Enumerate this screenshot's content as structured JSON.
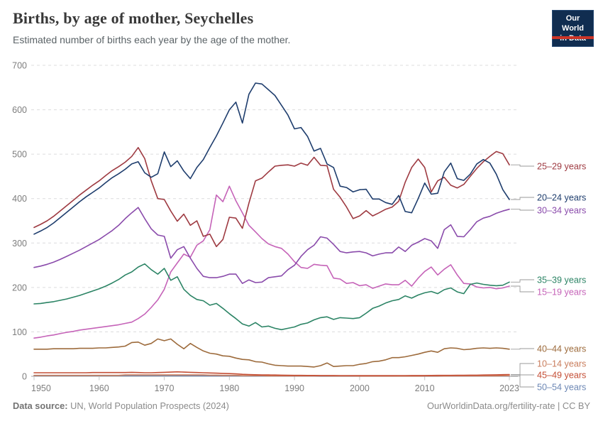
{
  "header": {
    "title": "Births, by age of mother, Seychelles",
    "subtitle": "Estimated number of births each year by the age of the mother.",
    "logo": {
      "line1": "Our World",
      "line2": "in Data",
      "bg_color": "#102d50",
      "stripe_color": "#cb3528"
    }
  },
  "footer": {
    "source_label": "Data source:",
    "source_text": " UN, World Population Prospects (2024)",
    "right_link": "OurWorldinData.org/fertility-rate",
    "right_license": " | CC BY"
  },
  "chart_data": {
    "type": "line",
    "title": "Births, by age of mother, Seychelles",
    "xlabel": "",
    "ylabel": "",
    "x": {
      "start": 1950,
      "end": 2023,
      "step": 1
    },
    "ylim": [
      0,
      700
    ],
    "yticks": [
      0,
      100,
      200,
      300,
      400,
      500,
      600,
      700
    ],
    "xticks": [
      1950,
      1960,
      1970,
      1980,
      1990,
      2000,
      2010,
      2023
    ],
    "grid": "dashed-horizontal",
    "legend_position": "right",
    "series": [
      {
        "id": "50-54",
        "name": "50–54 years",
        "color": "#6c87b4",
        "values": [
          1.5,
          1.5,
          1.5,
          1.5,
          1.5,
          1.5,
          1.5,
          1.5,
          1.5,
          1.5,
          1.5,
          1.5,
          1.5,
          1.5,
          1.5,
          1.5,
          1.5,
          1.4,
          1.4,
          1.4,
          1.4,
          1.4,
          1.3,
          1.3,
          1.2,
          1.2,
          1.1,
          1,
          1,
          0.9,
          0.9,
          0.8,
          0.8,
          0.7,
          0.7,
          0.6,
          0.6,
          0.5,
          0.5,
          0.5,
          0.4,
          0.4,
          0.4,
          0.4,
          0.3,
          0.3,
          0.3,
          0.3,
          0.3,
          0.3,
          0.3,
          0.3,
          0.3,
          0.3,
          0.3,
          0.3,
          0.3,
          0.3,
          0.3,
          0.3,
          0.3,
          0.3,
          0.3,
          0.4,
          0.4,
          0.4,
          0.4,
          0.5,
          0.5,
          0.5,
          0.5,
          0.6,
          0.6,
          0.7
        ]
      },
      {
        "id": "10-14",
        "name": "10–14 years",
        "color": "#c97d5c",
        "values": [
          2,
          2,
          2,
          2,
          2,
          2,
          2,
          2,
          2,
          2,
          2,
          2,
          2,
          2,
          3,
          3,
          3,
          3,
          3,
          3,
          3,
          3,
          3,
          3,
          3,
          3,
          3,
          2.5,
          2.5,
          2,
          2,
          2,
          1.5,
          1.5,
          1.5,
          1.5,
          1,
          1,
          1,
          1,
          1,
          1,
          0.8,
          0.8,
          0.8,
          0.8,
          0.6,
          0.6,
          0.6,
          0.6,
          0.5,
          0.5,
          0.5,
          0.5,
          0.5,
          0.5,
          0.5,
          0.5,
          0.5,
          0.5,
          0.6,
          0.6,
          0.7,
          0.7,
          0.8,
          0.8,
          0.8,
          0.9,
          1,
          1,
          1,
          1,
          1.2,
          1.2
        ]
      },
      {
        "id": "45-49",
        "name": "45–49 years",
        "color": "#c44e35",
        "values": [
          8,
          8,
          8,
          8,
          8,
          8,
          8,
          8,
          8,
          8.5,
          8.5,
          8.5,
          8.5,
          8.5,
          8.5,
          9,
          8.5,
          8,
          8,
          8.5,
          9,
          9.5,
          10,
          9.5,
          9,
          8.5,
          8,
          7.5,
          7,
          6.5,
          6,
          5.5,
          4.5,
          4,
          3.5,
          3,
          3,
          2.8,
          2.5,
          2.2,
          2,
          2,
          1.9,
          1.9,
          1.8,
          1.8,
          1.7,
          1.6,
          1.6,
          1.5,
          1.5,
          1.5,
          1.5,
          1.5,
          1.5,
          1.5,
          1.6,
          1.6,
          1.7,
          1.8,
          1.8,
          1.9,
          2,
          2,
          2.1,
          2.2,
          2.3,
          2.5,
          2.6,
          2.8,
          3,
          3.3,
          3.6,
          4
        ]
      },
      {
        "id": "40-44",
        "name": "40–44 years",
        "color": "#9d6b3c",
        "values": [
          61,
          61,
          61,
          62,
          62,
          62,
          62,
          63,
          63,
          63,
          64,
          64,
          65,
          66,
          68,
          76,
          77,
          70,
          74,
          84,
          80,
          84,
          72,
          62,
          74,
          65,
          57,
          52,
          50,
          46,
          45,
          41,
          38,
          37,
          33,
          32,
          28,
          25,
          24,
          23,
          23,
          23,
          22,
          21,
          24,
          30,
          22,
          23,
          24,
          24,
          27,
          29,
          33,
          34,
          37,
          42,
          42,
          44,
          47,
          50,
          54,
          57,
          54,
          62,
          64,
          63,
          60,
          61,
          63,
          64,
          63,
          64,
          63,
          61
        ]
      },
      {
        "id": "15-19",
        "name": "15–19 years",
        "color": "#c563b8",
        "values": [
          86,
          88,
          91,
          93,
          96,
          99,
          101,
          104,
          106,
          108,
          110,
          112,
          114,
          116,
          119,
          122,
          130,
          140,
          155,
          172,
          196,
          235,
          255,
          275,
          268,
          295,
          305,
          330,
          408,
          393,
          428,
          395,
          368,
          340,
          325,
          310,
          298,
          292,
          288,
          275,
          258,
          245,
          243,
          252,
          250,
          249,
          221,
          219,
          209,
          211,
          204,
          206,
          198,
          203,
          208,
          206,
          206,
          216,
          203,
          221,
          236,
          246,
          228,
          241,
          251,
          228,
          209,
          208,
          201,
          199,
          200,
          197,
          199,
          203
        ]
      },
      {
        "id": "35-39",
        "name": "35–39 years",
        "color": "#2c8465",
        "values": [
          163,
          164,
          166,
          168,
          171,
          174,
          178,
          182,
          187,
          192,
          197,
          203,
          210,
          218,
          228,
          235,
          246,
          253,
          240,
          230,
          243,
          216,
          224,
          196,
          182,
          173,
          170,
          160,
          164,
          153,
          141,
          130,
          118,
          113,
          121,
          111,
          113,
          108,
          105,
          108,
          111,
          117,
          120,
          127,
          132,
          134,
          128,
          132,
          131,
          130,
          132,
          142,
          153,
          158,
          165,
          170,
          173,
          181,
          176,
          183,
          188,
          191,
          186,
          195,
          199,
          190,
          186,
          207,
          210,
          207,
          205,
          204,
          205,
          212
        ]
      },
      {
        "id": "30-34",
        "name": "30–34 years",
        "color": "#8a4bab",
        "values": [
          245,
          248,
          252,
          257,
          263,
          270,
          277,
          284,
          292,
          300,
          308,
          318,
          328,
          340,
          355,
          368,
          380,
          355,
          332,
          318,
          315,
          266,
          285,
          292,
          266,
          243,
          225,
          222,
          222,
          225,
          230,
          230,
          209,
          217,
          211,
          212,
          222,
          224,
          226,
          240,
          250,
          270,
          285,
          295,
          314,
          311,
          297,
          281,
          278,
          280,
          281,
          278,
          271,
          275,
          278,
          278,
          291,
          281,
          295,
          302,
          310,
          305,
          288,
          330,
          341,
          315,
          314,
          330,
          348,
          356,
          360,
          367,
          372,
          376
        ]
      },
      {
        "id": "25-29",
        "name": "25–29 years",
        "color": "#9e3a41",
        "values": [
          335,
          342,
          350,
          360,
          372,
          384,
          396,
          408,
          419,
          430,
          440,
          452,
          463,
          472,
          482,
          495,
          515,
          490,
          440,
          400,
          398,
          372,
          349,
          365,
          340,
          350,
          315,
          320,
          292,
          308,
          358,
          356,
          333,
          390,
          440,
          446,
          460,
          473,
          475,
          476,
          473,
          480,
          475,
          493,
          475,
          474,
          421,
          403,
          381,
          355,
          361,
          373,
          361,
          368,
          376,
          381,
          394,
          437,
          470,
          489,
          470,
          415,
          440,
          448,
          430,
          424,
          432,
          450,
          468,
          483,
          495,
          506,
          501,
          476
        ]
      },
      {
        "id": "20-24",
        "name": "20–24 years",
        "color": "#1e3d6d",
        "values": [
          320,
          327,
          335,
          345,
          357,
          369,
          381,
          393,
          404,
          414,
          424,
          436,
          447,
          456,
          466,
          478,
          483,
          458,
          448,
          456,
          505,
          472,
          485,
          462,
          445,
          470,
          488,
          515,
          541,
          570,
          600,
          617,
          570,
          635,
          660,
          658,
          645,
          632,
          610,
          588,
          557,
          560,
          540,
          507,
          513,
          478,
          470,
          428,
          425,
          415,
          420,
          421,
          399,
          399,
          391,
          387,
          407,
          371,
          368,
          400,
          435,
          410,
          412,
          460,
          480,
          445,
          441,
          455,
          478,
          488,
          480,
          455,
          420,
          398
        ]
      }
    ],
    "legend": [
      {
        "id": "25-29",
        "label": "25–29 years",
        "y": 234
      },
      {
        "id": "20-24",
        "label": "20–24 years",
        "y": 278
      },
      {
        "id": "30-34",
        "label": "30–34 years",
        "y": 296
      },
      {
        "id": "35-39",
        "label": "35–39 years",
        "y": 394
      },
      {
        "id": "15-19",
        "label": "15–19 years",
        "y": 411
      },
      {
        "id": "40-44",
        "label": "40–44 years",
        "y": 491
      },
      {
        "id": "10-14",
        "label": "10–14 years",
        "y": 512
      },
      {
        "id": "45-49",
        "label": "45–49 years",
        "y": 528
      },
      {
        "id": "50-54",
        "label": "50–54 years",
        "y": 545
      }
    ]
  }
}
